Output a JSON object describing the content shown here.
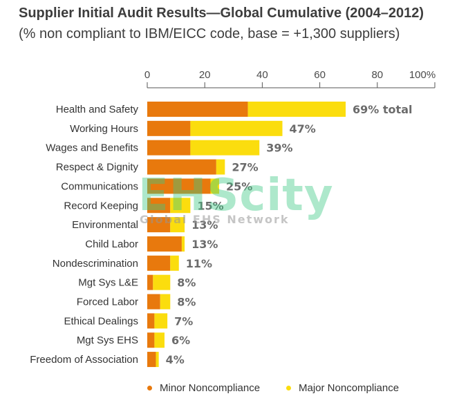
{
  "chart_data": {
    "type": "bar",
    "orientation": "horizontal",
    "stacked": true,
    "title": "Supplier Initial Audit Results—Global Cumulative (2004–2012)",
    "subtitle": "(% non compliant to IBM/EICC code, base = +1,300 suppliers)",
    "xlim": [
      0,
      100
    ],
    "xticks": [
      0,
      20,
      40,
      60,
      80,
      100
    ],
    "xtick_labels": [
      "0",
      "20",
      "40",
      "60",
      "80",
      "100%"
    ],
    "axis_position": "top",
    "grid": false,
    "categories": [
      "Health and Safety",
      "Working Hours",
      "Wages and Benefits",
      "Respect & Dignity",
      "Communications",
      "Record Keeping",
      "Environmental",
      "Child Labor",
      "Nondescrimination",
      "Mgt Sys L&E",
      "Forced Labor",
      "Ethical Dealings",
      "Mgt Sys EHS",
      "Freedom of Association"
    ],
    "series": [
      {
        "name": "Minor Noncompliance",
        "color": "#e8790d",
        "values": [
          35,
          15,
          15,
          24,
          22,
          8,
          8,
          12,
          8,
          2,
          4.5,
          2.5,
          2.5,
          3
        ]
      },
      {
        "name": "Major Noncompliance",
        "color": "#fbdd0e",
        "values": [
          34,
          32,
          24,
          3,
          3,
          7,
          5,
          1,
          3,
          6,
          3.5,
          4.5,
          3.5,
          1
        ]
      }
    ],
    "totals": [
      69,
      47,
      39,
      27,
      25,
      15,
      13,
      13,
      11,
      8,
      8,
      7,
      6,
      4
    ],
    "total_labels": [
      "69% total",
      "47%",
      "39%",
      "27%",
      "25%",
      "15%",
      "13%",
      "13%",
      "11%",
      "8%",
      "8%",
      "7%",
      "6%",
      "4%"
    ],
    "legend_position": "bottom"
  },
  "legend": {
    "minor_label": "Minor Noncompliance",
    "major_label": "Major Noncompliance"
  },
  "watermark": {
    "main": "EHScity",
    "sub": "Global EHS Network"
  }
}
